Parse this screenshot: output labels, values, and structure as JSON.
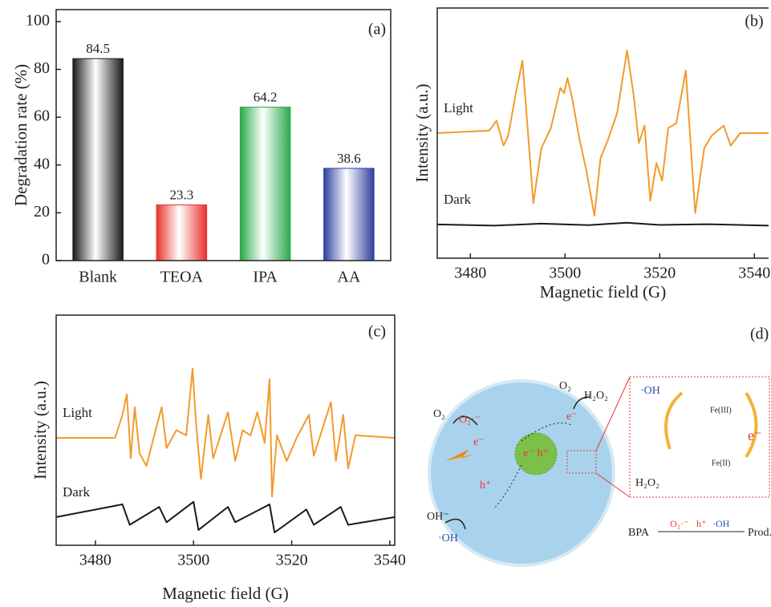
{
  "chart_data": [
    {
      "type": "bar",
      "annotation": "(a)",
      "ylabel": "Degradation rate (%)",
      "categories": [
        "Blank",
        "TEOA",
        "IPA",
        "AA"
      ],
      "values": [
        84.5,
        23.3,
        64.2,
        38.6
      ],
      "colors": [
        "#1a1a1a",
        "#e8322c",
        "#2aa84a",
        "#2e3f9e"
      ],
      "ylim": [
        0,
        105
      ],
      "yticks": [
        0,
        20,
        40,
        60,
        80,
        100
      ]
    },
    {
      "type": "line",
      "annotation": "(b)",
      "xlabel": "Magnetic field (G)",
      "ylabel": "Intensity (a.u.)",
      "xlim": [
        3473,
        3543
      ],
      "xticks": [
        3480,
        3500,
        3520,
        3540
      ],
      "ylim": [
        0,
        10
      ],
      "series": [
        {
          "name": "Light",
          "color": "#f39a2b",
          "x": [
            3473,
            3484,
            3485.5,
            3487,
            3488,
            3489.5,
            3491,
            3493.3,
            3495,
            3497,
            3499,
            3499.8,
            3500.5,
            3501.5,
            3503,
            3504.5,
            3506.2,
            3507.5,
            3509,
            3511,
            3513.1,
            3514.5,
            3515.6,
            3516.8,
            3518,
            3519.3,
            3520.5,
            3521.8,
            3523.5,
            3525.5,
            3527.5,
            3529.4,
            3531,
            3533.5,
            3535,
            3537,
            3543
          ],
          "values": [
            5,
            5.1,
            5.5,
            4.5,
            4.9,
            6.5,
            7.9,
            2.2,
            4.4,
            5.2,
            6.8,
            6.6,
            7.2,
            6.4,
            4.8,
            3.5,
            1.7,
            4.0,
            4.7,
            5.8,
            8.3,
            6.5,
            4.6,
            5.3,
            2.3,
            3.8,
            3.1,
            5.2,
            5.4,
            7.5,
            1.8,
            4.4,
            4.9,
            5.3,
            4.5,
            5.0,
            5.0
          ]
        },
        {
          "name": "Dark",
          "color": "#1a1a1a",
          "x": [
            3473,
            3485,
            3495,
            3505,
            3513,
            3520,
            3530,
            3543
          ],
          "values": [
            1.35,
            1.3,
            1.38,
            1.32,
            1.42,
            1.33,
            1.36,
            1.3
          ]
        }
      ]
    },
    {
      "type": "line",
      "annotation": "(c)",
      "xlabel": "Magnetic field (G)",
      "ylabel": "Intensity (a.u.)",
      "xlim": [
        3472,
        3541
      ],
      "xticks": [
        3480,
        3500,
        3520,
        3540
      ],
      "ylim": [
        1,
        10
      ],
      "series": [
        {
          "name": "Light",
          "color": "#f39a2b",
          "x": [
            3472,
            3484,
            3485.5,
            3486.4,
            3487.2,
            3488,
            3489,
            3490.4,
            3492,
            3493.5,
            3494.5,
            3496.5,
            3498.5,
            3499.8,
            3500.5,
            3501.5,
            3503,
            3504,
            3507,
            3508.5,
            3510,
            3511.6,
            3513,
            3514.5,
            3515.5,
            3516,
            3517,
            3519,
            3521,
            3523.5,
            3524.5,
            3526,
            3528,
            3529,
            3530.5,
            3531.5,
            3533,
            3541
          ],
          "values": [
            5.2,
            5.2,
            6.1,
            6.9,
            4.4,
            6.4,
            4.6,
            4.1,
            5.3,
            6.4,
            4.8,
            5.5,
            5.3,
            7.9,
            5.8,
            3.6,
            6.1,
            4.4,
            6.2,
            4.3,
            5.5,
            5.3,
            6.2,
            5.0,
            7.5,
            2.9,
            5.3,
            4.3,
            5.2,
            6.1,
            4.5,
            5.4,
            6.6,
            4.3,
            6.1,
            4.0,
            5.3,
            5.2
          ]
        },
        {
          "name": "Dark",
          "color": "#1a1a1a",
          "x": [
            3472,
            3485.5,
            3487,
            3493,
            3494.5,
            3500,
            3501,
            3507,
            3508.5,
            3515.5,
            3516.5,
            3523,
            3524.5,
            3530,
            3531.5,
            3541
          ],
          "values": [
            2.1,
            2.6,
            1.8,
            2.5,
            1.9,
            2.7,
            1.6,
            2.5,
            1.9,
            2.6,
            1.5,
            2.4,
            1.8,
            2.5,
            1.8,
            2.1
          ]
        }
      ]
    }
  ],
  "diagram": {
    "label": "(d)",
    "o2_top": "O₂",
    "h2o2_top": "H₂O₂",
    "o2_left": "O₂",
    "superoxide_left": "O₂·⁻",
    "e_left": "e⁻",
    "h_left": "h⁺",
    "eh_center": "e⁻ h⁺",
    "oh_minus": "OH⁻",
    "oh_radical": "·OH",
    "e_right": "e⁻",
    "box_oh": "·OH",
    "fe3": "Fe(III)",
    "box_e": "e⁻",
    "box_h2o2": "H₂O₂",
    "fe2": "Fe(II)",
    "bpa": "BPA",
    "sup": "O₂·⁻",
    "hole": "h⁺",
    "hydroxyl": "·OH",
    "prod": "Prod."
  }
}
